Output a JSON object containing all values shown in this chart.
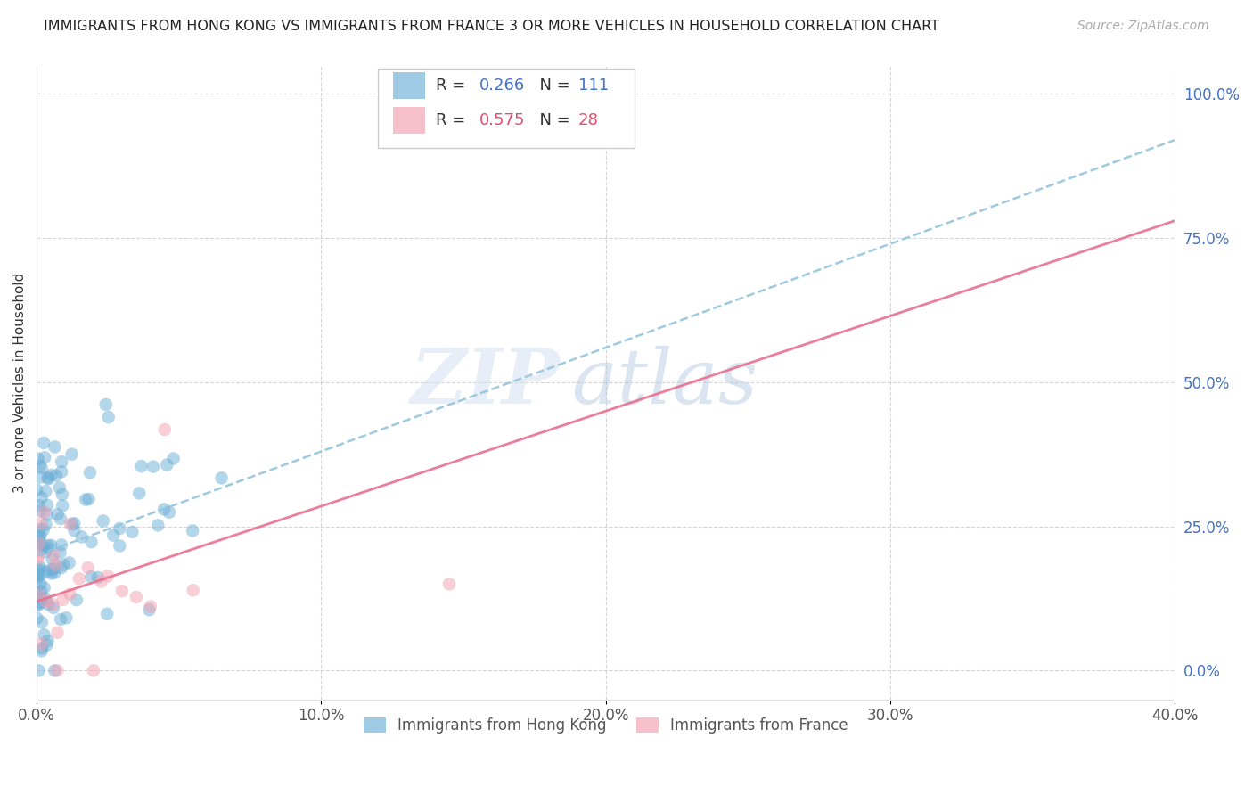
{
  "title": "IMMIGRANTS FROM HONG KONG VS IMMIGRANTS FROM FRANCE 3 OR MORE VEHICLES IN HOUSEHOLD CORRELATION CHART",
  "source": "Source: ZipAtlas.com",
  "ylabel_left": "3 or more Vehicles in Household",
  "xlabel_ticks": [
    "0.0%",
    "10.0%",
    "20.0%",
    "30.0%",
    "40.0%"
  ],
  "ylabel_right_ticks": [
    "0.0%",
    "25.0%",
    "50.0%",
    "75.0%",
    "100.0%"
  ],
  "xmin": 0.0,
  "xmax": 40.0,
  "ymin": -5.0,
  "ymax": 105.0,
  "hk_R": 0.266,
  "hk_N": 111,
  "france_R": 0.575,
  "france_N": 28,
  "hk_color": "#6baed6",
  "france_color": "#f4a0b0",
  "hk_line_color": "#3a7fc1",
  "hk_line_color2": "#92c5de",
  "france_line_color": "#e87090",
  "watermark_zip": "ZIP",
  "watermark_atlas": "atlas",
  "legend_hk": "Immigrants from Hong Kong",
  "legend_france": "Immigrants from France",
  "background_color": "#ffffff",
  "grid_color": "#cccccc",
  "hk_trendline": [
    20.0,
    92.0
  ],
  "france_trendline": [
    12.0,
    78.0
  ]
}
